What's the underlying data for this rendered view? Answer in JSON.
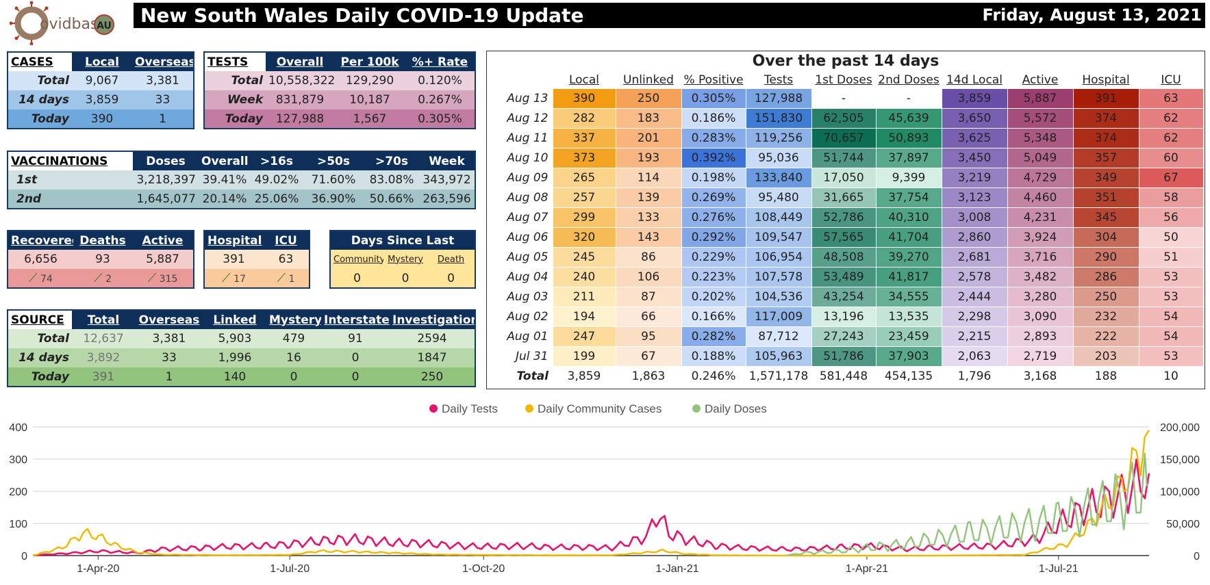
{
  "header": {
    "logo_text": "ovidbase",
    "logo_badge": "AU",
    "title": "New South Wales Daily COVID-19 Update",
    "date": "Friday, August 13, 2021"
  },
  "cases": {
    "head": [
      "CASES",
      "Local",
      "Overseas"
    ],
    "rows": [
      {
        "label": "Total",
        "v": [
          "9,067",
          "3,381"
        ]
      },
      {
        "label": "14 days",
        "v": [
          "3,859",
          "33"
        ]
      },
      {
        "label": "Today",
        "v": [
          "390",
          "1"
        ]
      }
    ]
  },
  "tests": {
    "head": [
      "TESTS",
      "Overall",
      "Per 100k",
      "%+ Rate"
    ],
    "rows": [
      {
        "label": "Total",
        "v": [
          "10,558,322",
          "129,290",
          "0.120%"
        ]
      },
      {
        "label": "Week",
        "v": [
          "831,879",
          "10,187",
          "0.267%"
        ]
      },
      {
        "label": "Today",
        "v": [
          "127,988",
          "1,567",
          "0.305%"
        ]
      }
    ]
  },
  "vaccinations": {
    "head": [
      "VACCINATIONS",
      "Doses",
      "Overall",
      ">16s",
      ">50s",
      ">70s",
      "Week"
    ],
    "rows": [
      {
        "label": "1st",
        "v": [
          "3,218,397",
          "39.41%",
          "49.02%",
          "71.60%",
          "83.08%",
          "343,972"
        ]
      },
      {
        "label": "2nd",
        "v": [
          "1,645,077",
          "20.14%",
          "25.06%",
          "36.90%",
          "50.66%",
          "263,596"
        ]
      }
    ]
  },
  "outcomes": {
    "head": [
      "Recovered",
      "Deaths",
      "Active"
    ],
    "values": [
      "6,656",
      "93",
      "5,887"
    ],
    "deltas": [
      "74",
      "2",
      "315"
    ]
  },
  "hospital": {
    "head": [
      "Hospital",
      "ICU"
    ],
    "values": [
      "391",
      "63"
    ],
    "deltas": [
      "17",
      "1"
    ]
  },
  "days_since": {
    "title": "Days Since Last",
    "head": [
      "Community",
      "Mystery",
      "Death"
    ],
    "values": [
      "0",
      "0",
      "0"
    ]
  },
  "source": {
    "head": [
      "SOURCE",
      "Total",
      "Overseas",
      "Linked",
      "Mystery",
      "Interstate",
      "Investigation"
    ],
    "rows": [
      {
        "label": "Total",
        "v": [
          "12,637",
          "3,381",
          "5,903",
          "479",
          "91",
          "2594"
        ]
      },
      {
        "label": "14 days",
        "v": [
          "3,892",
          "33",
          "1,996",
          "16",
          "0",
          "1847"
        ]
      },
      {
        "label": "Today",
        "v": [
          "391",
          "1",
          "140",
          "0",
          "0",
          "250"
        ]
      }
    ]
  },
  "past14": {
    "title": "Over the past 14 days",
    "head": [
      "Local",
      "Unlinked",
      "% Positive",
      "Tests",
      "1st Doses",
      "2nd Doses",
      "14d Local",
      "Active",
      "Hospital",
      "ICU"
    ],
    "rows": [
      {
        "day": "Aug 13",
        "v": [
          "390",
          "250",
          "0.305%",
          "127,988",
          "-",
          "-",
          "3,859",
          "5,887",
          "391",
          "63"
        ]
      },
      {
        "day": "Aug 12",
        "v": [
          "282",
          "183",
          "0.186%",
          "151,830",
          "62,505",
          "45,639",
          "3,650",
          "5,572",
          "374",
          "62"
        ]
      },
      {
        "day": "Aug 11",
        "v": [
          "337",
          "201",
          "0.283%",
          "119,256",
          "70,657",
          "50,893",
          "3,625",
          "5,348",
          "374",
          "62"
        ]
      },
      {
        "day": "Aug 10",
        "v": [
          "373",
          "193",
          "0.392%",
          "95,036",
          "51,744",
          "37,897",
          "3,450",
          "5,049",
          "357",
          "60"
        ]
      },
      {
        "day": "Aug 09",
        "v": [
          "265",
          "114",
          "0.198%",
          "133,840",
          "17,050",
          "9,399",
          "3,219",
          "4,729",
          "349",
          "67"
        ]
      },
      {
        "day": "Aug 08",
        "v": [
          "257",
          "139",
          "0.269%",
          "95,480",
          "31,665",
          "37,754",
          "3,123",
          "4,460",
          "351",
          "58"
        ]
      },
      {
        "day": "Aug 07",
        "v": [
          "299",
          "133",
          "0.276%",
          "108,449",
          "52,786",
          "40,310",
          "3,008",
          "4,231",
          "345",
          "56"
        ]
      },
      {
        "day": "Aug 06",
        "v": [
          "320",
          "143",
          "0.292%",
          "109,547",
          "57,565",
          "41,704",
          "2,860",
          "3,924",
          "304",
          "50"
        ]
      },
      {
        "day": "Aug 05",
        "v": [
          "245",
          "86",
          "0.229%",
          "106,954",
          "48,508",
          "39,270",
          "2,681",
          "3,716",
          "290",
          "51"
        ]
      },
      {
        "day": "Aug 04",
        "v": [
          "240",
          "106",
          "0.223%",
          "107,578",
          "53,489",
          "41,817",
          "2,578",
          "3,482",
          "286",
          "53"
        ]
      },
      {
        "day": "Aug 03",
        "v": [
          "211",
          "87",
          "0.202%",
          "104,536",
          "43,254",
          "34,555",
          "2,444",
          "3,280",
          "250",
          "53"
        ]
      },
      {
        "day": "Aug 02",
        "v": [
          "194",
          "66",
          "0.166%",
          "117,009",
          "13,196",
          "13,535",
          "2,298",
          "3,090",
          "232",
          "54"
        ]
      },
      {
        "day": "Aug 01",
        "v": [
          "247",
          "95",
          "0.282%",
          "87,712",
          "27,243",
          "23,459",
          "2,215",
          "2,893",
          "222",
          "54"
        ]
      },
      {
        "day": "Jul 31",
        "v": [
          "199",
          "67",
          "0.188%",
          "105,963",
          "51,786",
          "37,903",
          "2,063",
          "2,719",
          "203",
          "53"
        ]
      }
    ],
    "total": {
      "day": "Total",
      "v": [
        "3,859",
        "1,863",
        "0.246%",
        "1,571,178",
        "581,448",
        "454,135",
        "1,796",
        "3,168",
        "188",
        "10"
      ]
    }
  },
  "chart_data": {
    "type": "line",
    "title": "",
    "x_tick_labels": [
      "1-Apr-20",
      "1-Jul-20",
      "1-Oct-20",
      "1-Jan-21",
      "1-Apr-21",
      "1-Jul-21"
    ],
    "y_left_ticks": [
      "0",
      "100",
      "200",
      "300",
      "400"
    ],
    "y_right_ticks": [
      "0",
      "50,000",
      "100,000",
      "150,000",
      "200,000"
    ],
    "ylim_left": [
      0,
      400
    ],
    "ylim_right": [
      0,
      200000
    ],
    "x_range": [
      "2020-03-01",
      "2021-08-13"
    ],
    "grid": true,
    "legend_position": "top",
    "series": [
      {
        "name": "Daily Tests",
        "axis": "right",
        "color": "#e8116c",
        "points": [
          [
            "2020-03-01",
            500
          ],
          [
            "2020-03-20",
            4000
          ],
          [
            "2020-04-01",
            7000
          ],
          [
            "2020-04-20",
            4000
          ],
          [
            "2020-05-01",
            10000
          ],
          [
            "2020-05-20",
            12000
          ],
          [
            "2020-06-01",
            14000
          ],
          [
            "2020-06-20",
            15000
          ],
          [
            "2020-07-01",
            18000
          ],
          [
            "2020-07-20",
            24000
          ],
          [
            "2020-08-01",
            25000
          ],
          [
            "2020-08-20",
            20000
          ],
          [
            "2020-09-01",
            19000
          ],
          [
            "2020-09-20",
            15000
          ],
          [
            "2020-10-01",
            14000
          ],
          [
            "2020-10-20",
            15000
          ],
          [
            "2020-11-01",
            13000
          ],
          [
            "2020-11-20",
            13000
          ],
          [
            "2020-12-01",
            12000
          ],
          [
            "2020-12-18",
            30000
          ],
          [
            "2020-12-22",
            68000
          ],
          [
            "2020-12-28",
            35000
          ],
          [
            "2021-01-05",
            25000
          ],
          [
            "2021-01-20",
            15000
          ],
          [
            "2021-02-01",
            12000
          ],
          [
            "2021-02-20",
            10000
          ],
          [
            "2021-03-01",
            10000
          ],
          [
            "2021-03-20",
            13000
          ],
          [
            "2021-04-01",
            15000
          ],
          [
            "2021-04-20",
            10000
          ],
          [
            "2021-05-01",
            12000
          ],
          [
            "2021-05-20",
            14000
          ],
          [
            "2021-06-01",
            15000
          ],
          [
            "2021-06-20",
            25000
          ],
          [
            "2021-07-01",
            50000
          ],
          [
            "2021-07-15",
            75000
          ],
          [
            "2021-08-01",
            95000
          ],
          [
            "2021-08-13",
            128000
          ]
        ]
      },
      {
        "name": "Daily Community Cases",
        "axis": "left",
        "color": "#f1b800",
        "points": [
          [
            "2020-03-01",
            0
          ],
          [
            "2020-03-15",
            25
          ],
          [
            "2020-03-25",
            70
          ],
          [
            "2020-04-01",
            60
          ],
          [
            "2020-04-10",
            30
          ],
          [
            "2020-04-20",
            10
          ],
          [
            "2020-05-01",
            3
          ],
          [
            "2020-06-01",
            1
          ],
          [
            "2020-07-01",
            2
          ],
          [
            "2020-07-15",
            14
          ],
          [
            "2020-08-01",
            12
          ],
          [
            "2020-08-20",
            8
          ],
          [
            "2020-09-10",
            3
          ],
          [
            "2020-10-01",
            2
          ],
          [
            "2020-11-01",
            1
          ],
          [
            "2020-12-01",
            1
          ],
          [
            "2020-12-18",
            10
          ],
          [
            "2020-12-25",
            15
          ],
          [
            "2021-01-05",
            5
          ],
          [
            "2021-01-20",
            1
          ],
          [
            "2021-03-01",
            0
          ],
          [
            "2021-05-01",
            0
          ],
          [
            "2021-06-15",
            2
          ],
          [
            "2021-06-25",
            20
          ],
          [
            "2021-07-05",
            35
          ],
          [
            "2021-07-15",
            90
          ],
          [
            "2021-07-25",
            170
          ],
          [
            "2021-08-01",
            230
          ],
          [
            "2021-08-07",
            300
          ],
          [
            "2021-08-13",
            390
          ]
        ]
      },
      {
        "name": "Daily Doses",
        "axis": "right",
        "color": "#93c47d",
        "points": [
          [
            "2021-02-22",
            0
          ],
          [
            "2021-03-01",
            4000
          ],
          [
            "2021-03-20",
            7000
          ],
          [
            "2021-04-01",
            12000
          ],
          [
            "2021-04-20",
            18000
          ],
          [
            "2021-05-01",
            25000
          ],
          [
            "2021-05-20",
            35000
          ],
          [
            "2021-06-01",
            40000
          ],
          [
            "2021-06-20",
            50000
          ],
          [
            "2021-07-01",
            55000
          ],
          [
            "2021-07-20",
            75000
          ],
          [
            "2021-08-01",
            90000
          ],
          [
            "2021-08-12",
            108000
          ]
        ]
      }
    ]
  }
}
